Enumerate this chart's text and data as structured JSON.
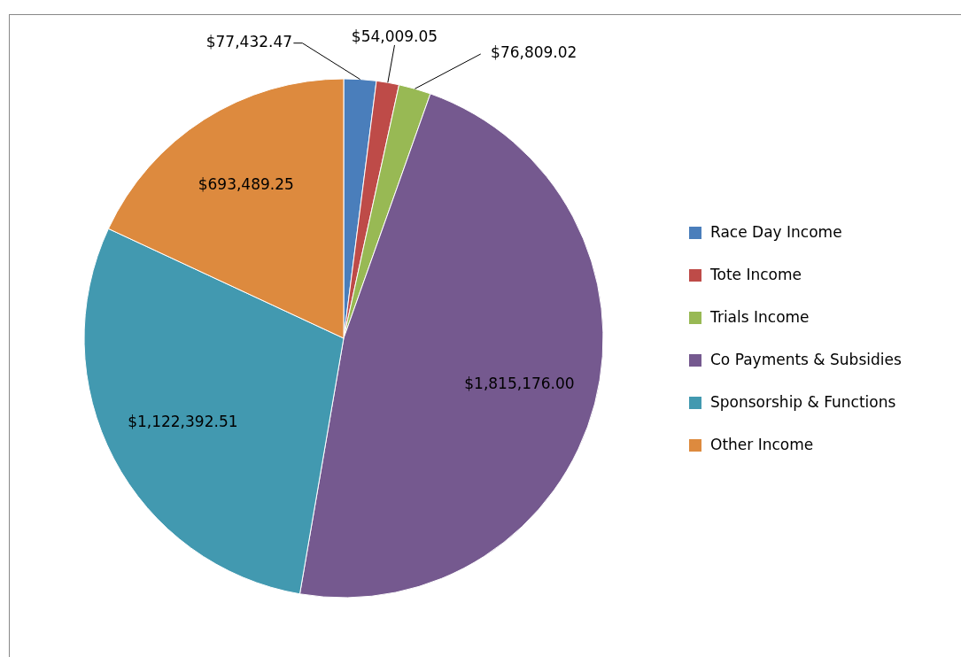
{
  "chart_data": {
    "type": "pie",
    "categories": [
      "Race Day Income",
      "Tote Income",
      "Trials Income",
      "Co Payments & Subsidies",
      "Sponsorship & Functions",
      "Other Income"
    ],
    "values": [
      77432.47,
      54009.05,
      76809.02,
      1815176.0,
      1122392.51,
      693489.25
    ],
    "colors": [
      "#4a7ebb",
      "#be4b48",
      "#98b954",
      "#75598f",
      "#4299b0",
      "#dd8a3e"
    ],
    "value_labels": [
      "$77,432.47",
      "$54,009.05",
      "$76,809.02",
      "$1,815,176.00",
      "$1,122,392.51",
      "$693,489.25"
    ],
    "legend": "right"
  }
}
